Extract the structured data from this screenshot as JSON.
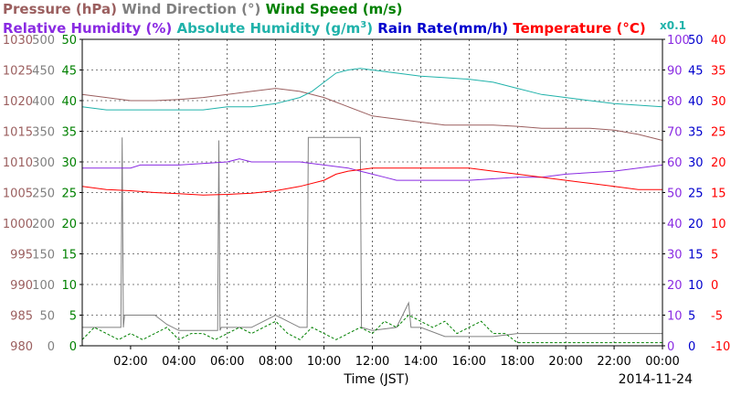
{
  "chart_data": {
    "type": "line",
    "date_label": "2014-11-24",
    "xlabel": "Time (JST)",
    "x_ticks": [
      "02:00",
      "04:00",
      "06:00",
      "08:00",
      "10:00",
      "12:00",
      "14:00",
      "16:00",
      "18:00",
      "20:00",
      "22:00",
      "00:00"
    ],
    "xlim_hours": [
      0,
      24
    ],
    "grid": true,
    "legend_row1": [
      {
        "label": "Pressure (hPa)",
        "color": "#9b5f5f"
      },
      {
        "label": "Wind Direction (°)",
        "color": "#808080"
      },
      {
        "label": "Wind Speed (m/s)",
        "color": "#008000"
      }
    ],
    "legend_row2": [
      {
        "label": "Relative Humidity (%)",
        "color": "#8a2be2"
      },
      {
        "label": "Absolute Humidity (g/m",
        "sup": "3",
        "tail": ")",
        "color": "#20b2aa"
      },
      {
        "label": "Rain Rate(mm/h)",
        "color": "#0000cd"
      },
      {
        "label": "Temperature (°C)",
        "color": "#ff0000"
      }
    ],
    "x01_label": {
      "text": "x0.1",
      "color": "#20b2aa"
    },
    "axes": {
      "pressure": {
        "ylim": [
          980,
          1030
        ],
        "ticks": [
          "1030",
          "1025",
          "1020",
          "1015",
          "1010",
          "1005",
          "1000",
          "995",
          "990",
          "985",
          "980"
        ],
        "color": "#9b5f5f"
      },
      "wind_direction": {
        "ylim": [
          0,
          500
        ],
        "ticks": [
          "500",
          "450",
          "400",
          "350",
          "300",
          "250",
          "200",
          "150",
          "100",
          "50",
          "0"
        ],
        "color": "#808080"
      },
      "wind_speed": {
        "ylim": [
          0,
          50
        ],
        "ticks": [
          "50",
          "45",
          "40",
          "35",
          "30",
          "25",
          "20",
          "15",
          "10",
          "5",
          "0"
        ],
        "color": "#008000"
      },
      "humidity": {
        "ylim": [
          0,
          100
        ],
        "ticks": [
          "100",
          "90",
          "80",
          "70",
          "60",
          "50",
          "40",
          "30",
          "20",
          "10",
          "0"
        ],
        "color": "#8a2be2"
      },
      "rain_rate": {
        "ylim": [
          0,
          50
        ],
        "ticks": [
          "50",
          "45",
          "40",
          "35",
          "30",
          "25",
          "20",
          "15",
          "10",
          "5",
          "0"
        ],
        "color": "#0000cd"
      },
      "temperature": {
        "ylim": [
          -10,
          40
        ],
        "ticks": [
          "40",
          "35",
          "30",
          "25",
          "20",
          "15",
          "10",
          "5",
          "0",
          "-5",
          "-10"
        ],
        "color": "#ff0000"
      }
    },
    "series": [
      {
        "name": "Pressure (hPa)",
        "axis": "pressure",
        "color": "#9b5f5f",
        "x": [
          0,
          1,
          2,
          3,
          4,
          5,
          6,
          7,
          8,
          9,
          10,
          11,
          12,
          13,
          14,
          15,
          16,
          17,
          18,
          19,
          20,
          21,
          22,
          23,
          24
        ],
        "values": [
          1021,
          1020.5,
          1020,
          1020,
          1020.2,
          1020.5,
          1021,
          1021.5,
          1022,
          1021.5,
          1020.5,
          1019,
          1017.5,
          1017,
          1016.5,
          1016,
          1016,
          1016,
          1015.8,
          1015.5,
          1015.5,
          1015.5,
          1015.2,
          1014.5,
          1013.5
        ]
      },
      {
        "name": "Wind Direction (°)",
        "axis": "wind_direction",
        "color": "#808080",
        "x": [
          0,
          1.6,
          1.65,
          1.7,
          1.75,
          2,
          3,
          3.5,
          4,
          5.6,
          5.65,
          5.7,
          5.75,
          7,
          8,
          9,
          9.3,
          9.35,
          11.5,
          11.55,
          12,
          13,
          13.5,
          13.6,
          14,
          15,
          16,
          17,
          18,
          20,
          22,
          24
        ],
        "values": [
          30,
          30,
          340,
          30,
          50,
          50,
          50,
          35,
          25,
          25,
          335,
          25,
          30,
          30,
          50,
          30,
          30,
          340,
          340,
          30,
          25,
          30,
          70,
          30,
          30,
          15,
          15,
          15,
          20,
          20,
          20,
          20
        ]
      },
      {
        "name": "Wind Speed (m/s)",
        "axis": "wind_speed",
        "color": "#008000",
        "x": [
          0,
          0.5,
          1,
          1.5,
          2,
          2.5,
          3,
          3.5,
          4,
          4.5,
          5,
          5.5,
          6,
          6.5,
          7,
          7.5,
          8,
          8.5,
          9,
          9.5,
          10,
          10.5,
          11,
          11.5,
          12,
          12.5,
          13,
          13.5,
          14,
          14.5,
          15,
          15.5,
          16,
          16.5,
          17,
          17.5,
          18,
          19,
          20,
          21,
          22,
          23,
          24
        ],
        "values": [
          1,
          3,
          2,
          1,
          2,
          1,
          2,
          3,
          1,
          2,
          2,
          1,
          2,
          3,
          2,
          3,
          4,
          2,
          1,
          3,
          2,
          1,
          2,
          3,
          2,
          4,
          3,
          5,
          4,
          3,
          4,
          2,
          3,
          4,
          2,
          2,
          0.5,
          0.5,
          0.5,
          0.5,
          0.5,
          0.5,
          0.5
        ]
      },
      {
        "name": "Relative Humidity (%)",
        "axis": "humidity",
        "color": "#8a2be2",
        "x": [
          0,
          2,
          2.4,
          4,
          6,
          6.5,
          7,
          7.5,
          8,
          9,
          10,
          11,
          11.5,
          12,
          12.5,
          13,
          14,
          16,
          18,
          19,
          20,
          22,
          23,
          24
        ],
        "values": [
          58,
          58,
          59,
          59,
          60,
          61,
          60,
          60,
          60,
          60,
          59,
          58,
          57,
          56,
          55,
          54,
          54,
          54,
          55,
          55,
          56,
          57,
          58,
          59
        ]
      },
      {
        "name": "Absolute Humidity (g/m3)",
        "axis": "humidity",
        "color": "#20b2aa",
        "x": [
          0,
          1,
          2,
          3,
          4,
          5,
          6,
          7,
          8,
          9,
          9.5,
          10,
          10.5,
          11,
          11.5,
          12,
          13,
          14,
          15,
          16,
          17,
          18,
          19,
          20,
          21,
          22,
          23,
          24
        ],
        "values": [
          78,
          77,
          77,
          77,
          77,
          77,
          78,
          78,
          79,
          81,
          83,
          86,
          89,
          90,
          90.5,
          90,
          89,
          88,
          87.5,
          87,
          86,
          84,
          82,
          81,
          80,
          79,
          78.5,
          78
        ]
      },
      {
        "name": "Rain Rate(mm/h)",
        "axis": "rain_rate",
        "color": "#0000cd",
        "x": [
          0,
          24
        ],
        "values": [
          0,
          0
        ]
      },
      {
        "name": "Temperature (°C)",
        "axis": "temperature",
        "color": "#ff0000",
        "x": [
          0,
          1,
          2,
          3,
          4,
          5,
          6,
          7,
          8,
          9,
          10,
          10.5,
          11,
          12,
          13,
          14,
          15,
          16,
          17,
          18,
          19,
          20,
          21,
          22,
          23,
          24
        ],
        "values": [
          16,
          15.5,
          15.3,
          15,
          14.8,
          14.6,
          14.7,
          14.9,
          15.3,
          16,
          17,
          18,
          18.5,
          19,
          19,
          19,
          19,
          19,
          18.5,
          18,
          17.5,
          17,
          16.5,
          16,
          15.5,
          15.5
        ]
      }
    ]
  }
}
